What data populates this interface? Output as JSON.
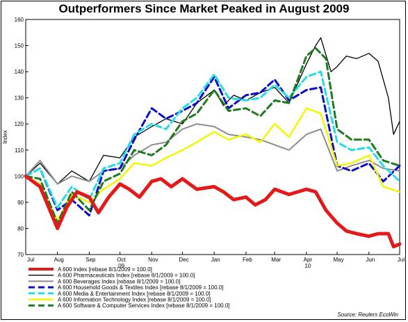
{
  "chart_data": {
    "type": "line",
    "title": "Outperformers Since Market Peaked in August 2009",
    "ylabel": "Index",
    "ylim": [
      70,
      160
    ],
    "yticks": [
      70,
      80,
      90,
      100,
      110,
      120,
      130,
      140,
      150,
      160
    ],
    "xrange": [
      "2009-07-01",
      "2010-07-01"
    ],
    "xticks": [
      {
        "date": "2009-07-01",
        "label": "Jul",
        "sub": ""
      },
      {
        "date": "2009-08-01",
        "label": "Aug",
        "sub": ""
      },
      {
        "date": "2009-09-01",
        "label": "Sep",
        "sub": ""
      },
      {
        "date": "2009-10-01",
        "label": "Oct",
        "sub": "09"
      },
      {
        "date": "2009-11-01",
        "label": "Nov",
        "sub": ""
      },
      {
        "date": "2009-12-01",
        "label": "Dec",
        "sub": ""
      },
      {
        "date": "2010-01-01",
        "label": "Jan",
        "sub": ""
      },
      {
        "date": "2010-02-01",
        "label": "Feb",
        "sub": ""
      },
      {
        "date": "2010-03-01",
        "label": "Mar",
        "sub": ""
      },
      {
        "date": "2010-04-01",
        "label": "Apr",
        "sub": "10"
      },
      {
        "date": "2010-05-01",
        "label": "May",
        "sub": ""
      },
      {
        "date": "2010-06-01",
        "label": "Jun",
        "sub": ""
      },
      {
        "date": "2010-07-01",
        "label": "Jul",
        "sub": ""
      }
    ],
    "grid": false,
    "legend_position": "bottom-left",
    "source": "Source: Reuters EcoWin",
    "series": [
      {
        "name": "A 600 Index [rebase 8/1/2009 = 100.0]",
        "color": "#e41a1a",
        "dash": "solid",
        "width": 5,
        "x": [
          "2009-07-01",
          "2009-07-15",
          "2009-08-01",
          "2009-08-10",
          "2009-08-20",
          "2009-09-01",
          "2009-09-10",
          "2009-09-20",
          "2009-10-01",
          "2009-10-10",
          "2009-10-20",
          "2009-11-01",
          "2009-11-10",
          "2009-11-20",
          "2009-12-01",
          "2009-12-15",
          "2010-01-01",
          "2010-01-10",
          "2010-01-20",
          "2010-02-01",
          "2010-02-10",
          "2010-02-20",
          "2010-03-01",
          "2010-03-15",
          "2010-04-01",
          "2010-04-10",
          "2010-04-20",
          "2010-05-01",
          "2010-05-10",
          "2010-05-20",
          "2010-06-01",
          "2010-06-10",
          "2010-06-20",
          "2010-06-25",
          "2010-07-01"
        ],
        "y": [
          100,
          96,
          80,
          88,
          94,
          92,
          86,
          92,
          97,
          95,
          92,
          98,
          99,
          96,
          99,
          95,
          96,
          94,
          91,
          92,
          89,
          91,
          95,
          93,
          95,
          94,
          87,
          82,
          79,
          78,
          77,
          78,
          78,
          73,
          74
        ]
      },
      {
        "name": "A 600 Pharmaceuticals Index [rebase 8/1/2009 = 100.0]",
        "color": "#000000",
        "dash": "solid",
        "width": 1.3,
        "x": [
          "2009-07-01",
          "2009-07-15",
          "2009-08-01",
          "2009-08-15",
          "2009-09-01",
          "2009-09-15",
          "2009-10-01",
          "2009-10-15",
          "2009-11-01",
          "2009-11-15",
          "2009-12-01",
          "2009-12-15",
          "2010-01-01",
          "2010-01-10",
          "2010-01-20",
          "2010-02-01",
          "2010-02-15",
          "2010-03-01",
          "2010-03-15",
          "2010-04-01",
          "2010-04-10",
          "2010-04-15",
          "2010-04-25",
          "2010-05-01",
          "2010-05-10",
          "2010-05-20",
          "2010-06-01",
          "2010-06-10",
          "2010-06-20",
          "2010-06-25",
          "2010-07-01"
        ],
        "y": [
          100,
          105,
          97,
          102,
          98,
          108,
          107,
          115,
          119,
          122,
          120,
          128,
          133,
          127,
          131,
          129,
          132,
          134,
          128,
          143,
          150,
          153,
          140,
          142,
          146,
          145,
          147,
          144,
          130,
          116,
          121
        ]
      },
      {
        "name": "A 600 Beverages Index [rebase 8/1/2009 = 100.0]",
        "color": "#8c8c8c",
        "dash": "solid",
        "width": 2,
        "x": [
          "2009-07-01",
          "2009-07-15",
          "2009-08-01",
          "2009-08-15",
          "2009-09-01",
          "2009-09-15",
          "2009-10-01",
          "2009-10-15",
          "2009-11-01",
          "2009-11-15",
          "2009-12-01",
          "2009-12-15",
          "2010-01-01",
          "2010-01-15",
          "2010-02-01",
          "2010-02-15",
          "2010-03-01",
          "2010-03-15",
          "2010-04-01",
          "2010-04-15",
          "2010-05-01",
          "2010-05-15",
          "2010-06-01",
          "2010-06-15",
          "2010-07-01"
        ],
        "y": [
          100,
          106,
          97,
          100,
          98,
          102,
          103,
          108,
          112,
          113,
          118,
          120,
          119,
          116,
          115,
          114,
          112,
          110,
          116,
          118,
          102,
          104,
          106,
          103,
          102
        ]
      },
      {
        "name": "A 600 Household Goods & Textiles Index [rebase 8/1/2009 = 100.0]",
        "color": "#0a0acc",
        "dash": "dashed",
        "width": 3,
        "x": [
          "2009-07-01",
          "2009-07-15",
          "2009-08-01",
          "2009-08-15",
          "2009-09-01",
          "2009-09-15",
          "2009-10-01",
          "2009-10-15",
          "2009-11-01",
          "2009-11-15",
          "2009-12-01",
          "2009-12-15",
          "2010-01-01",
          "2010-01-15",
          "2010-02-01",
          "2010-02-15",
          "2010-03-01",
          "2010-03-15",
          "2010-04-01",
          "2010-04-15",
          "2010-05-01",
          "2010-05-15",
          "2010-06-01",
          "2010-06-15",
          "2010-07-01"
        ],
        "y": [
          100,
          103,
          87,
          91,
          85,
          102,
          103,
          114,
          126,
          122,
          125,
          128,
          138,
          126,
          131,
          132,
          137,
          129,
          133,
          134,
          104,
          102,
          105,
          98,
          104
        ]
      },
      {
        "name": "A 600 Media & Entertainment Index [rebase 8/1/2009 = 100.0]",
        "color": "#22dde8",
        "dash": "dashed",
        "width": 3,
        "x": [
          "2009-07-01",
          "2009-07-15",
          "2009-08-01",
          "2009-08-15",
          "2009-09-01",
          "2009-09-15",
          "2009-10-01",
          "2009-10-15",
          "2009-11-01",
          "2009-11-15",
          "2009-12-01",
          "2009-12-15",
          "2010-01-01",
          "2010-01-15",
          "2010-02-01",
          "2010-02-15",
          "2010-03-01",
          "2010-03-15",
          "2010-04-01",
          "2010-04-15",
          "2010-05-01",
          "2010-05-15",
          "2010-06-01",
          "2010-06-15",
          "2010-07-01"
        ],
        "y": [
          100,
          103,
          88,
          96,
          91,
          103,
          105,
          116,
          120,
          118,
          126,
          130,
          139,
          130,
          129,
          130,
          135,
          130,
          138,
          140,
          113,
          110,
          111,
          104,
          98
        ]
      },
      {
        "name": "A 600 Information Technology Index [rebase 8/1/2009 = 100.0]",
        "color": "#f5f500",
        "dash": "solid",
        "width": 2.5,
        "x": [
          "2009-07-01",
          "2009-07-15",
          "2009-08-01",
          "2009-08-15",
          "2009-09-01",
          "2009-09-15",
          "2009-10-01",
          "2009-10-15",
          "2009-11-01",
          "2009-11-15",
          "2009-12-01",
          "2009-12-15",
          "2010-01-01",
          "2010-01-15",
          "2010-02-01",
          "2010-02-15",
          "2010-03-01",
          "2010-03-15",
          "2010-04-01",
          "2010-04-15",
          "2010-05-01",
          "2010-05-15",
          "2010-06-01",
          "2010-06-15",
          "2010-07-01"
        ],
        "y": [
          100,
          97,
          83,
          93,
          90,
          95,
          99,
          105,
          104,
          107,
          110,
          113,
          117,
          114,
          116,
          113,
          120,
          115,
          126,
          124,
          104,
          105,
          108,
          96,
          94
        ]
      },
      {
        "name": "A 600 Software & Computer Services Index [rebase 8/1/2009 = 100.0]",
        "color": "#1e7a1e",
        "dash": "dashed",
        "width": 3,
        "x": [
          "2009-07-01",
          "2009-07-15",
          "2009-08-01",
          "2009-08-15",
          "2009-09-01",
          "2009-09-15",
          "2009-10-01",
          "2009-10-15",
          "2009-11-01",
          "2009-11-15",
          "2009-12-01",
          "2009-12-15",
          "2010-01-01",
          "2010-01-15",
          "2010-02-01",
          "2010-02-15",
          "2010-03-01",
          "2010-03-15",
          "2010-04-01",
          "2010-04-10",
          "2010-04-20",
          "2010-05-01",
          "2010-05-15",
          "2010-06-01",
          "2010-06-15",
          "2010-07-01"
        ],
        "y": [
          100,
          99,
          82,
          94,
          87,
          98,
          101,
          110,
          108,
          112,
          121,
          124,
          133,
          125,
          126,
          123,
          129,
          128,
          146,
          149,
          145,
          118,
          114,
          114,
          106,
          104
        ]
      }
    ]
  }
}
